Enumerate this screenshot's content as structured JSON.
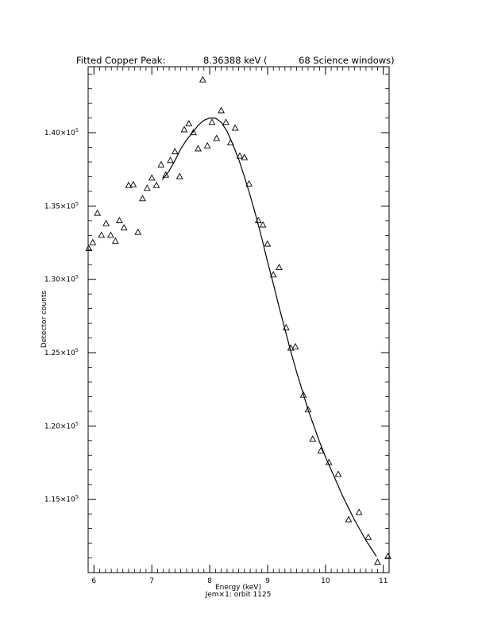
{
  "chart_data": {
    "type": "scatter",
    "title": {
      "prefix": "Fitted Copper Peak:",
      "value": "8.36388 keV (",
      "suffix": "68 Science windows)"
    },
    "xlabel": "Energy (keV)",
    "subtitle": "Jem×1: orbit 1125",
    "ylabel": "Detector counts",
    "xlim": [
      5.9,
      11.1
    ],
    "ylim": [
      110000,
      144500
    ],
    "x_ticks": [
      6,
      7,
      8,
      9,
      10,
      11
    ],
    "y_ticks": [
      {
        "value": 115000,
        "mantissa": "1.15×10",
        "exponent": "5"
      },
      {
        "value": 120000,
        "mantissa": "1.20×10",
        "exponent": "5"
      },
      {
        "value": 125000,
        "mantissa": "1.25×10",
        "exponent": "5"
      },
      {
        "value": 130000,
        "mantissa": "1.30×10",
        "exponent": "5"
      },
      {
        "value": 135000,
        "mantissa": "1.35×10",
        "exponent": "5"
      },
      {
        "value": 140000,
        "mantissa": "1.40×10",
        "exponent": "5"
      }
    ],
    "marker": "triangle",
    "grid": false,
    "series": [
      {
        "points": [
          [
            5.91,
            132100
          ],
          [
            5.98,
            132500
          ],
          [
            6.06,
            134500
          ],
          [
            6.13,
            133000
          ],
          [
            6.21,
            133800
          ],
          [
            6.29,
            133000
          ],
          [
            6.37,
            132600
          ],
          [
            6.44,
            134000
          ],
          [
            6.52,
            133500
          ],
          [
            6.6,
            136400
          ],
          [
            6.68,
            136450
          ],
          [
            6.76,
            133200
          ],
          [
            6.84,
            135500
          ],
          [
            6.92,
            136200
          ],
          [
            7.0,
            136900
          ],
          [
            7.08,
            136400
          ],
          [
            7.16,
            137800
          ],
          [
            7.24,
            137100
          ],
          [
            7.32,
            138100
          ],
          [
            7.4,
            138700
          ],
          [
            7.48,
            137000
          ],
          [
            7.56,
            140200
          ],
          [
            7.64,
            140600
          ],
          [
            7.72,
            140000
          ],
          [
            7.8,
            138900
          ],
          [
            7.88,
            143600
          ],
          [
            7.96,
            139100
          ],
          [
            8.04,
            140700
          ],
          [
            8.12,
            139600
          ],
          [
            8.2,
            141500
          ],
          [
            8.28,
            140700
          ],
          [
            8.36,
            139300
          ],
          [
            8.44,
            140300
          ],
          [
            8.52,
            138400
          ],
          [
            8.6,
            138300
          ],
          [
            8.68,
            136500
          ],
          [
            8.84,
            134000
          ],
          [
            8.92,
            133700
          ],
          [
            9.0,
            132400
          ],
          [
            9.1,
            130300
          ],
          [
            9.2,
            130800
          ],
          [
            9.32,
            126700
          ],
          [
            9.4,
            125300
          ],
          [
            9.48,
            125400
          ],
          [
            9.62,
            122100
          ],
          [
            9.7,
            121100
          ],
          [
            9.78,
            119100
          ],
          [
            9.92,
            118300
          ],
          [
            10.06,
            117500
          ],
          [
            10.22,
            116700
          ],
          [
            10.4,
            113600
          ],
          [
            10.58,
            114100
          ],
          [
            10.74,
            112400
          ],
          [
            10.9,
            110700
          ],
          [
            11.08,
            111100
          ]
        ]
      },
      {
        "type": "line",
        "description_free": true,
        "points": [
          [
            7.18,
            136800
          ],
          [
            7.3,
            137400
          ],
          [
            7.4,
            138100
          ],
          [
            7.5,
            138900
          ],
          [
            7.6,
            139500
          ],
          [
            7.7,
            140000
          ],
          [
            7.8,
            140500
          ],
          [
            7.9,
            140850
          ],
          [
            8.0,
            141000
          ],
          [
            8.1,
            141000
          ],
          [
            8.2,
            140700
          ],
          [
            8.3,
            140100
          ],
          [
            8.4,
            139200
          ],
          [
            8.5,
            138200
          ],
          [
            8.6,
            137000
          ],
          [
            8.7,
            135700
          ],
          [
            8.8,
            134300
          ],
          [
            8.9,
            132800
          ],
          [
            9.0,
            131200
          ],
          [
            9.1,
            129700
          ],
          [
            9.2,
            128100
          ],
          [
            9.3,
            126600
          ],
          [
            9.4,
            125100
          ],
          [
            9.5,
            123700
          ],
          [
            9.6,
            122400
          ],
          [
            9.7,
            121100
          ],
          [
            9.8,
            120000
          ],
          [
            9.9,
            118900
          ],
          [
            10.0,
            117900
          ],
          [
            10.1,
            117000
          ],
          [
            10.2,
            116100
          ],
          [
            10.3,
            115200
          ],
          [
            10.4,
            114400
          ],
          [
            10.5,
            113600
          ],
          [
            10.6,
            112900
          ],
          [
            10.7,
            112200
          ],
          [
            10.8,
            111600
          ],
          [
            10.88,
            111100
          ]
        ]
      }
    ]
  }
}
